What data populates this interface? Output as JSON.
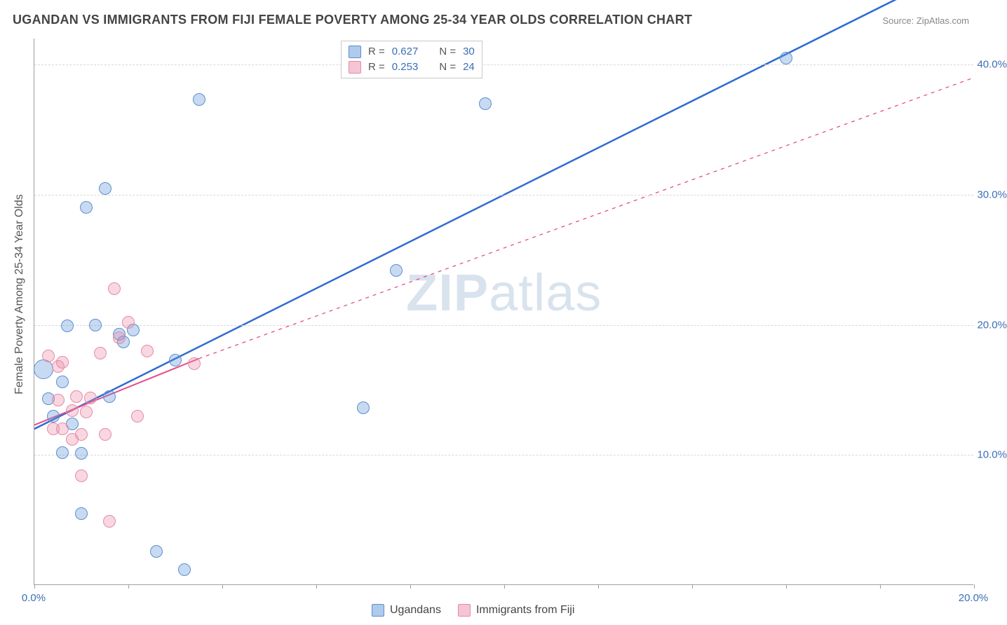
{
  "title": "UGANDAN VS IMMIGRANTS FROM FIJI FEMALE POVERTY AMONG 25-34 YEAR OLDS CORRELATION CHART",
  "source": "Source: ZipAtlas.com",
  "y_axis_title": "Female Poverty Among 25-34 Year Olds",
  "watermark_a": "ZIP",
  "watermark_b": "atlas",
  "chart": {
    "type": "scatter",
    "x_domain": [
      0,
      20
    ],
    "y_domain": [
      0,
      42
    ],
    "x_ticks": [
      0,
      2,
      4,
      6,
      8,
      10,
      12,
      14,
      16,
      18,
      20
    ],
    "x_tick_labels": {
      "0": "0.0%",
      "20": "20.0%"
    },
    "y_grid": [
      10,
      20,
      30,
      40
    ],
    "y_tick_labels": {
      "10": "10.0%",
      "20": "20.0%",
      "30": "30.0%",
      "40": "40.0%"
    },
    "background_color": "#ffffff",
    "grid_color": "#d8d8d8",
    "axis_color": "#9e9e9e",
    "tick_label_color": "#3b6fb6",
    "marker_radius": 9,
    "series": [
      {
        "name": "Ugandans",
        "fill": "rgba(96,150,214,0.35)",
        "stroke": "#5a8fd0",
        "line_stroke": "#2f6bd0",
        "line_width": 2.5,
        "line_dash": "none",
        "trend": {
          "x1": 0,
          "y1": 12.0,
          "x2": 20,
          "y2": 48.0
        },
        "points": [
          {
            "x": 0.2,
            "y": 16.6,
            "r": 14
          },
          {
            "x": 0.3,
            "y": 14.3
          },
          {
            "x": 0.4,
            "y": 13.0
          },
          {
            "x": 0.6,
            "y": 10.2
          },
          {
            "x": 0.6,
            "y": 15.6
          },
          {
            "x": 0.7,
            "y": 19.9
          },
          {
            "x": 0.8,
            "y": 12.4
          },
          {
            "x": 1.0,
            "y": 10.1
          },
          {
            "x": 1.0,
            "y": 5.5
          },
          {
            "x": 1.1,
            "y": 29.0
          },
          {
            "x": 1.3,
            "y": 20.0
          },
          {
            "x": 1.5,
            "y": 30.5
          },
          {
            "x": 1.6,
            "y": 14.5
          },
          {
            "x": 1.8,
            "y": 19.3
          },
          {
            "x": 1.9,
            "y": 18.7
          },
          {
            "x": 2.1,
            "y": 19.6
          },
          {
            "x": 2.6,
            "y": 2.6
          },
          {
            "x": 3.0,
            "y": 17.3
          },
          {
            "x": 3.2,
            "y": 1.2
          },
          {
            "x": 3.5,
            "y": 37.3
          },
          {
            "x": 7.0,
            "y": 13.6
          },
          {
            "x": 7.7,
            "y": 24.2
          },
          {
            "x": 9.6,
            "y": 37.0
          },
          {
            "x": 16.0,
            "y": 40.5
          }
        ]
      },
      {
        "name": "Immigrants from Fiji",
        "fill": "rgba(236,140,168,0.35)",
        "stroke": "#e68aa6",
        "line_stroke": "#e64e86",
        "line_width": 2,
        "line_dash": "none",
        "dash_ext": "5,6",
        "trend": {
          "x1": 0,
          "y1": 12.3,
          "x2": 3.5,
          "y2": 17.4
        },
        "trend_ext": {
          "x1": 3.5,
          "y1": 17.4,
          "x2": 20,
          "y2": 39.0
        },
        "points": [
          {
            "x": 0.3,
            "y": 17.6
          },
          {
            "x": 0.4,
            "y": 12.0
          },
          {
            "x": 0.5,
            "y": 16.8
          },
          {
            "x": 0.5,
            "y": 14.2
          },
          {
            "x": 0.6,
            "y": 12.0
          },
          {
            "x": 0.6,
            "y": 17.1
          },
          {
            "x": 0.8,
            "y": 13.4
          },
          {
            "x": 0.8,
            "y": 11.2
          },
          {
            "x": 0.9,
            "y": 14.5
          },
          {
            "x": 1.0,
            "y": 8.4
          },
          {
            "x": 1.0,
            "y": 11.6
          },
          {
            "x": 1.1,
            "y": 13.3
          },
          {
            "x": 1.2,
            "y": 14.4
          },
          {
            "x": 1.4,
            "y": 17.8
          },
          {
            "x": 1.5,
            "y": 11.6
          },
          {
            "x": 1.6,
            "y": 4.9
          },
          {
            "x": 1.7,
            "y": 22.8
          },
          {
            "x": 1.8,
            "y": 19.0
          },
          {
            "x": 2.0,
            "y": 20.2
          },
          {
            "x": 2.2,
            "y": 13.0
          },
          {
            "x": 2.4,
            "y": 18.0
          },
          {
            "x": 3.4,
            "y": 17.0
          }
        ]
      }
    ]
  },
  "legend_top": {
    "rows": [
      {
        "swatch_fill": "rgba(96,150,214,0.5)",
        "swatch_border": "#5a8fd0",
        "r_label": "R =",
        "r_value": "0.627",
        "n_label": "N =",
        "n_value": "30"
      },
      {
        "swatch_fill": "rgba(236,140,168,0.5)",
        "swatch_border": "#e68aa6",
        "r_label": "R =",
        "r_value": "0.253",
        "n_label": "N =",
        "n_value": "24"
      }
    ]
  },
  "legend_bottom": {
    "items": [
      {
        "fill": "rgba(96,150,214,0.5)",
        "border": "#5a8fd0",
        "label": "Ugandans"
      },
      {
        "fill": "rgba(236,140,168,0.5)",
        "border": "#e68aa6",
        "label": "Immigrants from Fiji"
      }
    ]
  }
}
